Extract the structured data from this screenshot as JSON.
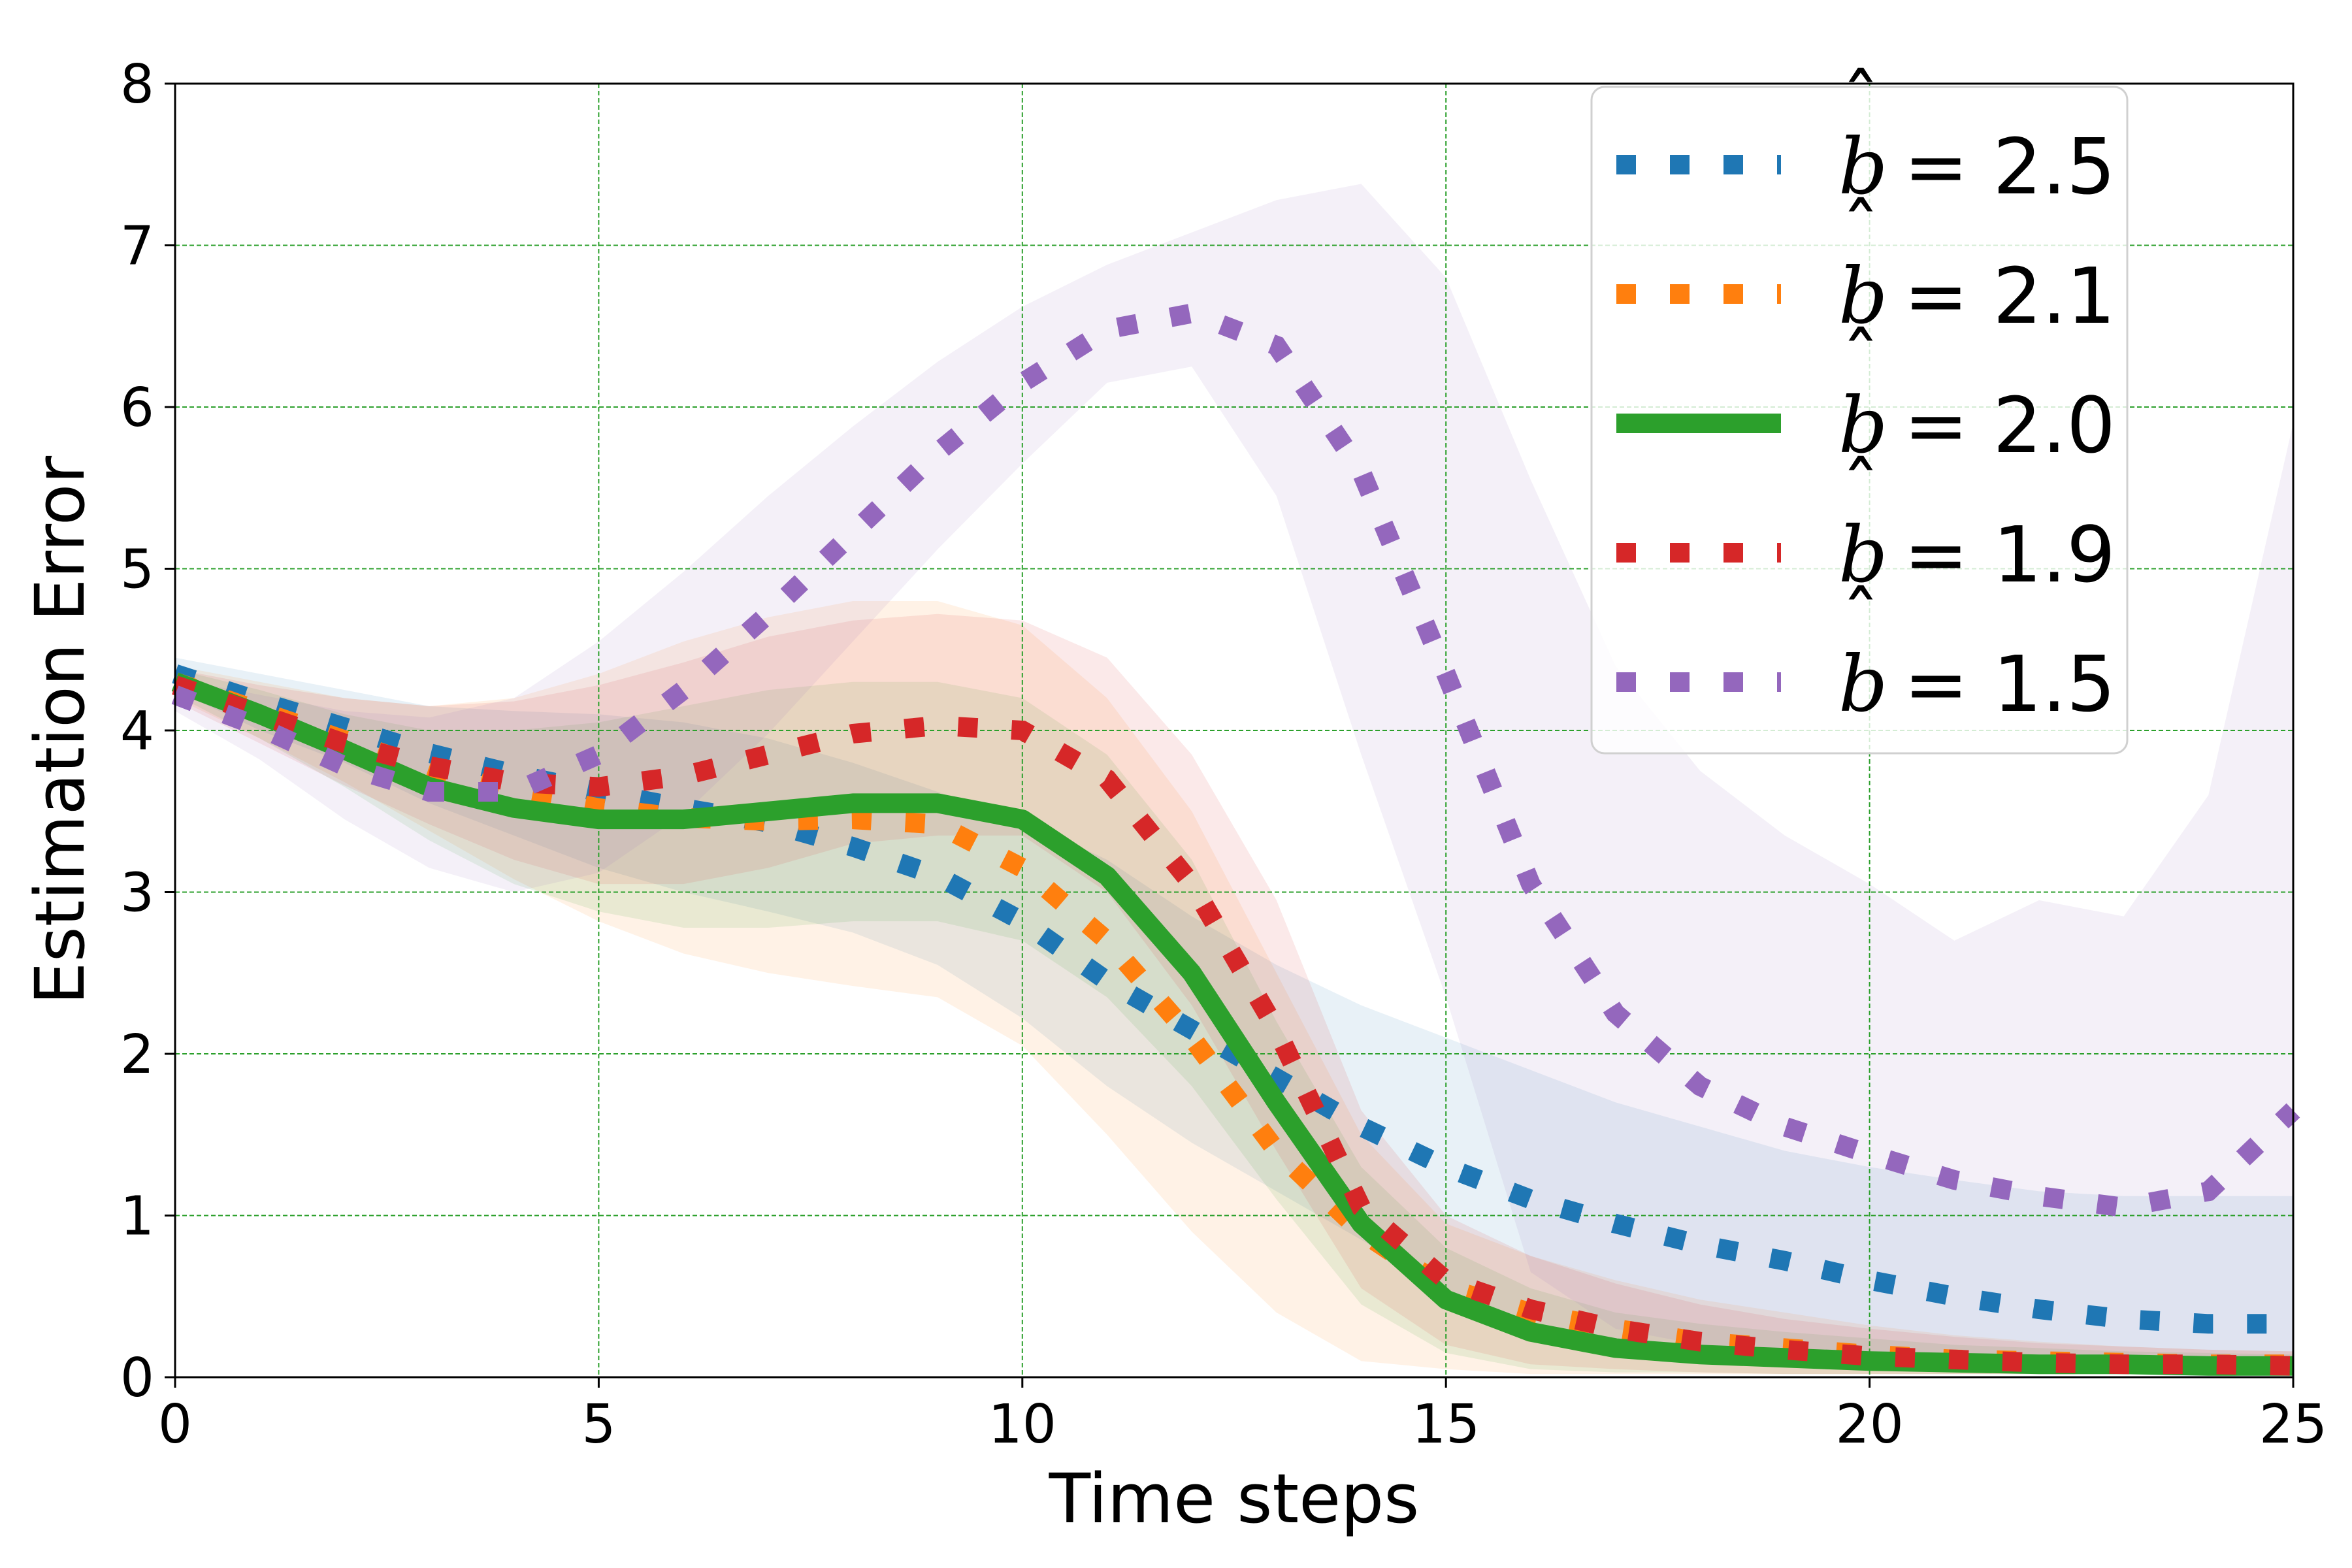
{
  "chart_data": {
    "type": "line",
    "xlabel": "Time steps",
    "ylabel": "Estimation Error",
    "xlim": [
      0,
      25
    ],
    "ylim": [
      0,
      8
    ],
    "xticks": [
      0,
      5,
      10,
      15,
      20,
      25
    ],
    "yticks": [
      0,
      1,
      2,
      3,
      4,
      5,
      6,
      7,
      8
    ],
    "grid": true,
    "grid_color": "#2ca02c",
    "legend_position": "top-right",
    "x": [
      0,
      1,
      2,
      3,
      4,
      5,
      6,
      7,
      8,
      9,
      10,
      11,
      12,
      13,
      14,
      15,
      16,
      17,
      18,
      19,
      20,
      21,
      22,
      23,
      24,
      25
    ],
    "series": [
      {
        "name": "b̂ = 2.5",
        "legend_symbol": "b",
        "legend_value": "= 2.5",
        "color": "#1f77b4",
        "style": "dotted",
        "values": [
          4.35,
          4.18,
          4.02,
          3.86,
          3.73,
          3.62,
          3.52,
          3.43,
          3.28,
          3.1,
          2.82,
          2.45,
          2.15,
          1.85,
          1.55,
          1.3,
          1.1,
          0.95,
          0.82,
          0.72,
          0.6,
          0.5,
          0.42,
          0.36,
          0.33,
          0.33
        ],
        "upper": [
          4.45,
          4.35,
          4.25,
          4.15,
          4.12,
          4.1,
          4.05,
          3.95,
          3.8,
          3.62,
          3.45,
          3.2,
          2.85,
          2.55,
          2.3,
          2.1,
          1.9,
          1.7,
          1.55,
          1.4,
          1.3,
          1.22,
          1.15,
          1.12,
          1.12,
          1.12
        ],
        "lower": [
          4.25,
          4.0,
          3.8,
          3.55,
          3.35,
          3.15,
          3.0,
          2.88,
          2.75,
          2.55,
          2.22,
          1.8,
          1.45,
          1.15,
          0.85,
          0.55,
          0.3,
          0.2,
          0.15,
          0.12,
          0.1,
          0.08,
          0.05,
          0.02,
          0.0,
          0.0
        ]
      },
      {
        "name": "b̂ = 2.1",
        "legend_symbol": "b",
        "legend_value": "= 2.1",
        "color": "#ff7f0e",
        "style": "dotted",
        "values": [
          4.3,
          4.12,
          3.94,
          3.76,
          3.62,
          3.52,
          3.46,
          3.44,
          3.45,
          3.42,
          3.15,
          2.7,
          2.1,
          1.4,
          0.9,
          0.55,
          0.4,
          0.3,
          0.22,
          0.18,
          0.14,
          0.11,
          0.1,
          0.09,
          0.08,
          0.08
        ],
        "upper": [
          4.4,
          4.3,
          4.2,
          4.15,
          4.2,
          4.35,
          4.55,
          4.7,
          4.8,
          4.8,
          4.65,
          4.2,
          3.5,
          2.5,
          1.5,
          0.95,
          0.75,
          0.6,
          0.48,
          0.4,
          0.32,
          0.26,
          0.22,
          0.19,
          0.17,
          0.16
        ],
        "lower": [
          4.2,
          3.95,
          3.68,
          3.38,
          3.08,
          2.82,
          2.62,
          2.5,
          2.42,
          2.35,
          2.05,
          1.5,
          0.9,
          0.4,
          0.1,
          0.05,
          0.02,
          0.02,
          0.02,
          0.02,
          0.02,
          0.02,
          0.02,
          0.02,
          0.02,
          0.02
        ]
      },
      {
        "name": "b̂ = 2.0",
        "legend_symbol": "b",
        "legend_value": "= 2.0",
        "color": "#2ca02c",
        "style": "solid",
        "values": [
          4.3,
          4.1,
          3.88,
          3.65,
          3.52,
          3.45,
          3.45,
          3.5,
          3.55,
          3.55,
          3.45,
          3.1,
          2.5,
          1.7,
          0.95,
          0.48,
          0.28,
          0.18,
          0.14,
          0.12,
          0.1,
          0.09,
          0.08,
          0.08,
          0.07,
          0.07
        ],
        "upper": [
          4.38,
          4.25,
          4.1,
          4.0,
          4.0,
          4.05,
          4.15,
          4.25,
          4.3,
          4.3,
          4.2,
          3.85,
          3.2,
          2.2,
          1.3,
          0.8,
          0.55,
          0.4,
          0.33,
          0.28,
          0.24,
          0.2,
          0.18,
          0.16,
          0.15,
          0.14
        ],
        "lower": [
          4.22,
          3.95,
          3.65,
          3.32,
          3.05,
          2.88,
          2.78,
          2.78,
          2.82,
          2.82,
          2.7,
          2.35,
          1.8,
          1.1,
          0.45,
          0.15,
          0.05,
          0.03,
          0.03,
          0.02,
          0.02,
          0.02,
          0.02,
          0.02,
          0.02,
          0.02
        ]
      },
      {
        "name": "b̂ = 1.9",
        "legend_symbol": "b",
        "legend_value": "= 1.9",
        "color": "#d62728",
        "style": "dotted",
        "values": [
          4.28,
          4.1,
          3.92,
          3.78,
          3.68,
          3.65,
          3.72,
          3.85,
          3.98,
          4.03,
          4.0,
          3.7,
          3.05,
          2.15,
          1.05,
          0.6,
          0.42,
          0.3,
          0.22,
          0.17,
          0.13,
          0.11,
          0.09,
          0.08,
          0.08,
          0.07
        ],
        "upper": [
          4.38,
          4.28,
          4.2,
          4.15,
          4.18,
          4.28,
          4.42,
          4.58,
          4.68,
          4.72,
          4.68,
          4.45,
          3.85,
          2.95,
          1.65,
          1.0,
          0.75,
          0.58,
          0.45,
          0.36,
          0.3,
          0.25,
          0.21,
          0.19,
          0.17,
          0.16
        ],
        "lower": [
          4.18,
          3.92,
          3.66,
          3.42,
          3.2,
          3.05,
          3.05,
          3.15,
          3.3,
          3.35,
          3.35,
          3.0,
          2.3,
          1.4,
          0.55,
          0.2,
          0.08,
          0.05,
          0.03,
          0.02,
          0.02,
          0.02,
          0.02,
          0.02,
          0.02,
          0.02
        ]
      },
      {
        "name": "b̂ = 1.5",
        "legend_symbol": "b",
        "legend_value": "= 1.5",
        "color": "#9467bd",
        "style": "dotted",
        "values": [
          4.22,
          4.02,
          3.78,
          3.62,
          3.62,
          3.85,
          4.25,
          4.72,
          5.22,
          5.72,
          6.15,
          6.48,
          6.58,
          6.38,
          5.6,
          4.35,
          3.05,
          2.25,
          1.8,
          1.55,
          1.38,
          1.22,
          1.12,
          1.05,
          1.15,
          1.65
        ],
        "upper": [
          4.32,
          4.22,
          4.12,
          4.08,
          4.2,
          4.55,
          4.98,
          5.45,
          5.88,
          6.28,
          6.62,
          6.88,
          7.08,
          7.28,
          7.38,
          6.8,
          5.55,
          4.4,
          3.75,
          3.35,
          3.05,
          2.7,
          2.95,
          2.85,
          3.6,
          5.9
        ],
        "lower": [
          4.12,
          3.82,
          3.45,
          3.15,
          3.0,
          3.12,
          3.48,
          3.98,
          4.55,
          5.12,
          5.65,
          6.15,
          6.25,
          5.45,
          3.85,
          2.35,
          0.65,
          0.3,
          0.2,
          0.15,
          0.12,
          0.1,
          0.08,
          0.08,
          0.1,
          0.05
        ]
      }
    ]
  }
}
